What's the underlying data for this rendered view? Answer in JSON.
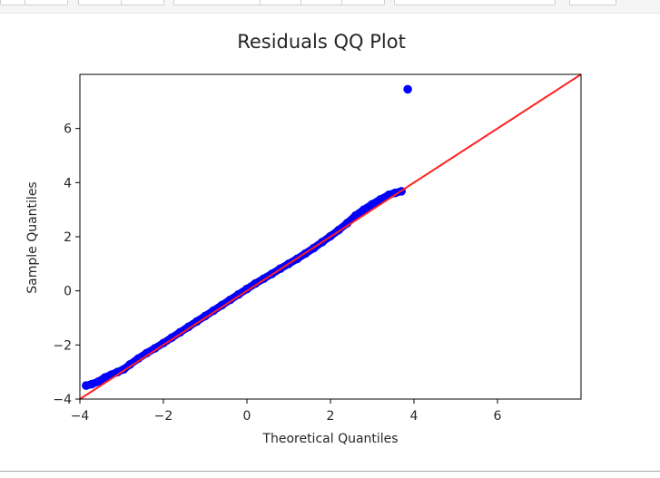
{
  "chart_data": {
    "type": "scatter",
    "title": "Residuals QQ Plot",
    "xlabel": "Theoretical Quantiles",
    "ylabel": "Sample Quantiles",
    "xlim": [
      -4,
      8
    ],
    "ylim": [
      -4,
      8
    ],
    "xticks": [
      -4,
      -2,
      0,
      2,
      4,
      6
    ],
    "yticks": [
      -4,
      -2,
      0,
      2,
      4,
      6
    ],
    "xtick_labels": [
      "−4",
      "−2",
      "0",
      "2",
      "4",
      "6"
    ],
    "ytick_labels": [
      "−4",
      "−2",
      "0",
      "2",
      "4",
      "6"
    ],
    "grid": false,
    "point_color": "#0000ff",
    "line_color": "#ff2020",
    "reference_line": {
      "x": [
        -4,
        8
      ],
      "y": [
        -4,
        8
      ]
    },
    "points": {
      "x": [
        -3.85,
        -3.72,
        -3.55,
        -3.4,
        -3.25,
        -3.1,
        -2.95,
        -2.8,
        -2.6,
        -2.4,
        -2.2,
        -2.0,
        -1.8,
        -1.6,
        -1.4,
        -1.2,
        -1.0,
        -0.8,
        -0.6,
        -0.4,
        -0.2,
        0.0,
        0.2,
        0.4,
        0.6,
        0.8,
        1.0,
        1.2,
        1.4,
        1.6,
        1.8,
        2.0,
        2.2,
        2.4,
        2.6,
        2.8,
        3.0,
        3.2,
        3.4,
        3.55,
        3.7,
        3.85
      ],
      "y": [
        -3.5,
        -3.45,
        -3.35,
        -3.2,
        -3.1,
        -3.0,
        -2.9,
        -2.72,
        -2.5,
        -2.3,
        -2.12,
        -1.93,
        -1.73,
        -1.53,
        -1.33,
        -1.13,
        -0.93,
        -0.73,
        -0.53,
        -0.33,
        -0.13,
        0.07,
        0.27,
        0.45,
        0.63,
        0.82,
        1.0,
        1.18,
        1.38,
        1.58,
        1.8,
        2.02,
        2.25,
        2.5,
        2.78,
        3.0,
        3.2,
        3.38,
        3.55,
        3.62,
        3.68,
        7.45
      ]
    }
  }
}
